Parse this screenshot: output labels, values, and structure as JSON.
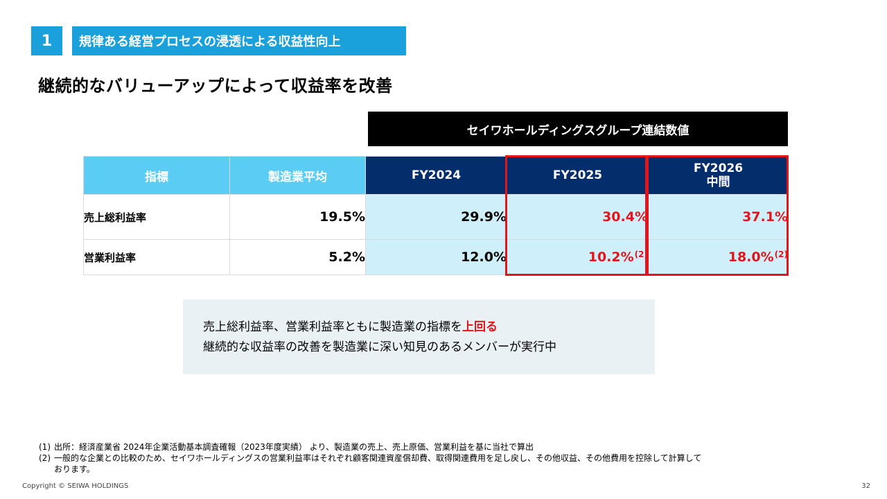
{
  "section": {
    "number": "1",
    "title": "規律ある経営プロセスの浸透による収益性向上"
  },
  "heading": "継続的なバリューアップによって収益率を改善",
  "group_header": "セイワホールディングスグループ連結数値",
  "table": {
    "headers": {
      "metric": "指標",
      "industry_avg": "製造業平均",
      "fy2024": "FY2024",
      "fy2025": "FY2025",
      "fy2026_line1": "FY2026",
      "fy2026_line2": "中間"
    },
    "rows": [
      {
        "label": "売上総利益率",
        "industry_avg": "19.5%",
        "fy2024": "29.9%",
        "fy2025": "30.4%",
        "fy2026": "37.1%"
      },
      {
        "label": "営業利益率",
        "industry_avg": "5.2%",
        "fy2024": "12.0%",
        "fy2025": "10.2%",
        "fy2025_note": "(2)",
        "fy2026": "18.0%",
        "fy2026_note": "(2)"
      }
    ]
  },
  "summary": {
    "line1_prefix": "売上総利益率、営業利益率ともに製造業の指標を",
    "line1_highlight": "上回る",
    "line2": "継続的な収益率の改善を製造業に深い知見のあるメンバーが実行中"
  },
  "footnotes": [
    {
      "mark": "(1)",
      "text": "出所：経済産業省 2024年企業活動基本調査確報（2023年度実績） より、製造業の売上、売上原価、営業利益を基に当社で算出"
    },
    {
      "mark": "(2)",
      "text": "一般的な企業との比較のため、セイワホールディングスの営業利益率はそれぞれ顧客関連資産償却費、取得関連費用を足し戻し、その他収益、その他費用を控除して計算しております。"
    }
  ],
  "copyright": "Copyright © SEIWA HOLDINGS",
  "page_number": "32",
  "colors": {
    "accent_blue": "#1aa0db",
    "header_light": "#5bcdf4",
    "header_dark": "#042d6b",
    "cell_shaded": "#cff0fb",
    "highlight_red": "#e3141a"
  }
}
